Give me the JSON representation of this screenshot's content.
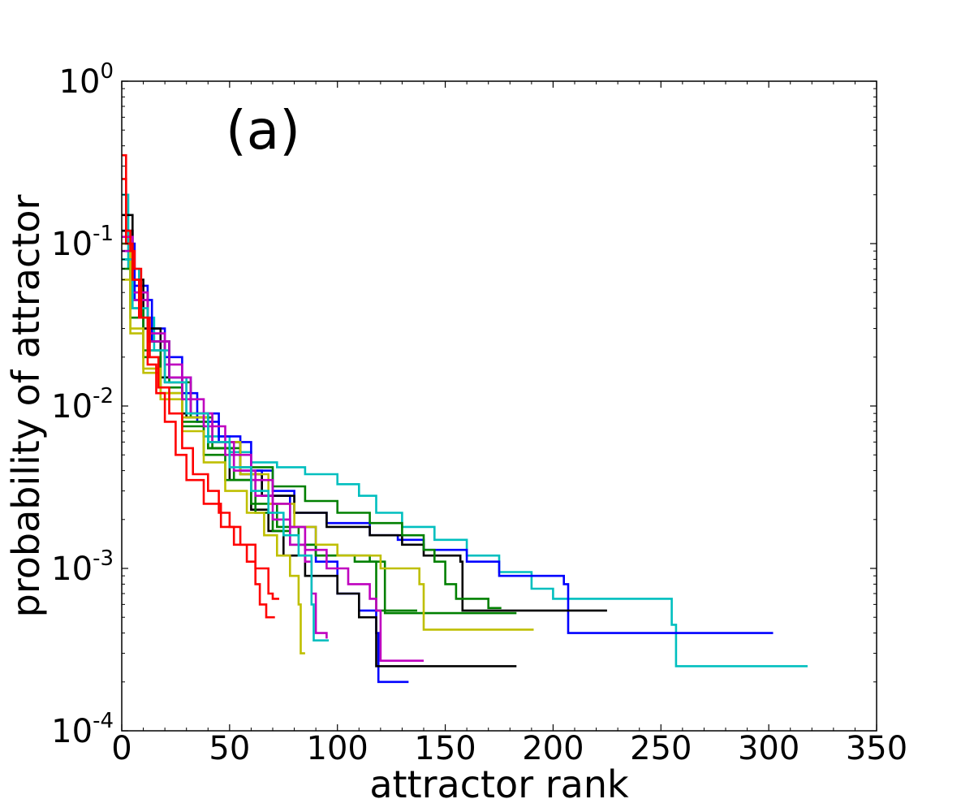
{
  "chart_data": {
    "type": "line",
    "title": "",
    "panel_label": "(a)",
    "xlabel": "attractor rank",
    "ylabel": "probability of attractor",
    "xlim": [
      0,
      350
    ],
    "ylim": [
      0.0001,
      1
    ],
    "yscale": "log",
    "grid": false,
    "legend": "none",
    "x_ticks": [
      0,
      50,
      100,
      150,
      200,
      250,
      300,
      350
    ],
    "x_tick_labels": [
      "0",
      "50",
      "100",
      "150",
      "200",
      "250",
      "300",
      "350"
    ],
    "y_ticks": [
      {
        "value": 1,
        "base": "10",
        "exp": "0"
      },
      {
        "value": 0.1,
        "base": "10",
        "exp": "-1"
      },
      {
        "value": 0.01,
        "base": "10",
        "exp": "-2"
      },
      {
        "value": 0.001,
        "base": "10",
        "exp": "-3"
      },
      {
        "value": 0.0001,
        "base": "10",
        "exp": "-4"
      }
    ],
    "series": [
      {
        "name": "cyan",
        "color": "#00bfbf",
        "points": [
          [
            0,
            0.2
          ],
          [
            3,
            0.07
          ],
          [
            8,
            0.035
          ],
          [
            15,
            0.022
          ],
          [
            22,
            0.015
          ],
          [
            30,
            0.0085
          ],
          [
            38,
            0.0065
          ],
          [
            50,
            0.0052
          ],
          [
            60,
            0.0045
          ],
          [
            72,
            0.0042
          ],
          [
            85,
            0.0038
          ],
          [
            100,
            0.0033
          ],
          [
            110,
            0.0028
          ],
          [
            118,
            0.0022
          ],
          [
            130,
            0.0018
          ],
          [
            145,
            0.0015
          ],
          [
            160,
            0.0012
          ],
          [
            175,
            0.00095
          ],
          [
            190,
            0.00075
          ],
          [
            200,
            0.00065
          ],
          [
            255,
            0.00045
          ],
          [
            257,
            0.00025
          ],
          [
            318,
            0.00025
          ]
        ]
      },
      {
        "name": "blue-1",
        "color": "#0000ff",
        "points": [
          [
            0,
            0.12
          ],
          [
            5,
            0.055
          ],
          [
            12,
            0.03
          ],
          [
            20,
            0.02
          ],
          [
            28,
            0.012
          ],
          [
            35,
            0.008
          ],
          [
            45,
            0.006
          ],
          [
            60,
            0.004
          ],
          [
            70,
            0.003
          ],
          [
            80,
            0.0022
          ],
          [
            95,
            0.0019
          ],
          [
            115,
            0.0016
          ],
          [
            128,
            0.0015
          ],
          [
            140,
            0.0013
          ],
          [
            160,
            0.0011
          ],
          [
            175,
            0.0009
          ],
          [
            205,
            0.0008
          ],
          [
            207,
            0.0004
          ],
          [
            302,
            0.0004
          ]
        ]
      },
      {
        "name": "blue-2",
        "color": "#0000ff",
        "points": [
          [
            0,
            0.1
          ],
          [
            6,
            0.045
          ],
          [
            14,
            0.025
          ],
          [
            22,
            0.015
          ],
          [
            32,
            0.009
          ],
          [
            45,
            0.0065
          ],
          [
            55,
            0.004
          ],
          [
            65,
            0.0028
          ],
          [
            78,
            0.0018
          ],
          [
            90,
            0.0011
          ],
          [
            100,
            0.0007
          ],
          [
            110,
            0.00055
          ],
          [
            118,
            0.0004
          ],
          [
            119,
            0.0002
          ],
          [
            133,
            0.0002
          ]
        ]
      },
      {
        "name": "black-1",
        "color": "#000000",
        "points": [
          [
            0,
            0.15
          ],
          [
            5,
            0.06
          ],
          [
            10,
            0.03
          ],
          [
            18,
            0.015
          ],
          [
            28,
            0.009
          ],
          [
            40,
            0.006
          ],
          [
            55,
            0.0038
          ],
          [
            65,
            0.0028
          ],
          [
            80,
            0.0022
          ],
          [
            95,
            0.0018
          ],
          [
            115,
            0.0016
          ],
          [
            130,
            0.0014
          ],
          [
            140,
            0.0012
          ],
          [
            157,
            0.0011
          ],
          [
            158,
            0.00055
          ],
          [
            225,
            0.00055
          ]
        ]
      },
      {
        "name": "black-2",
        "color": "#000000",
        "points": [
          [
            0,
            0.12
          ],
          [
            5,
            0.05
          ],
          [
            12,
            0.025
          ],
          [
            20,
            0.014
          ],
          [
            30,
            0.0085
          ],
          [
            40,
            0.0055
          ],
          [
            50,
            0.0035
          ],
          [
            60,
            0.0023
          ],
          [
            68,
            0.0017
          ],
          [
            75,
            0.0012
          ],
          [
            85,
            0.0009
          ],
          [
            100,
            0.0007
          ],
          [
            110,
            0.0005
          ],
          [
            117,
            0.0005
          ],
          [
            118,
            0.00025
          ],
          [
            183,
            0.00025
          ]
        ]
      },
      {
        "name": "green-1",
        "color": "#008000",
        "points": [
          [
            0,
            0.08
          ],
          [
            4,
            0.04
          ],
          [
            10,
            0.022
          ],
          [
            18,
            0.013
          ],
          [
            28,
            0.008
          ],
          [
            40,
            0.0055
          ],
          [
            55,
            0.0042
          ],
          [
            70,
            0.0032
          ],
          [
            85,
            0.0026
          ],
          [
            100,
            0.0022
          ],
          [
            115,
            0.0019
          ],
          [
            130,
            0.0016
          ],
          [
            140,
            0.0013
          ],
          [
            145,
            0.0011
          ],
          [
            150,
            0.0008
          ],
          [
            155,
            0.00065
          ],
          [
            170,
            0.00057
          ],
          [
            176,
            0.00057
          ]
        ]
      },
      {
        "name": "green-2",
        "color": "#008000",
        "points": [
          [
            0,
            0.07
          ],
          [
            4,
            0.035
          ],
          [
            10,
            0.02
          ],
          [
            18,
            0.012
          ],
          [
            28,
            0.0075
          ],
          [
            38,
            0.005
          ],
          [
            48,
            0.0035
          ],
          [
            60,
            0.0025
          ],
          [
            72,
            0.0018
          ],
          [
            82,
            0.0014
          ],
          [
            90,
            0.0012
          ],
          [
            115,
            0.0011
          ],
          [
            118,
            0.00055
          ],
          [
            137,
            0.00055
          ]
        ]
      },
      {
        "name": "green-3",
        "color": "#008000",
        "points": [
          [
            0,
            0.09
          ],
          [
            5,
            0.045
          ],
          [
            12,
            0.025
          ],
          [
            22,
            0.014
          ],
          [
            32,
            0.0085
          ],
          [
            42,
            0.0055
          ],
          [
            52,
            0.0035
          ],
          [
            62,
            0.0022
          ],
          [
            70,
            0.0017
          ],
          [
            78,
            0.0014
          ],
          [
            90,
            0.0012
          ],
          [
            108,
            0.0011
          ],
          [
            120,
            0.0011
          ],
          [
            122,
            0.00053
          ],
          [
            183,
            0.00053
          ]
        ]
      },
      {
        "name": "yellow",
        "color": "#bfbf00",
        "points": [
          [
            0,
            0.1
          ],
          [
            4,
            0.03
          ],
          [
            10,
            0.017
          ],
          [
            18,
            0.012
          ],
          [
            28,
            0.0085
          ],
          [
            40,
            0.006
          ],
          [
            55,
            0.0038
          ],
          [
            68,
            0.0025
          ],
          [
            80,
            0.0018
          ],
          [
            90,
            0.0014
          ],
          [
            100,
            0.0012
          ],
          [
            120,
            0.001
          ],
          [
            138,
            0.0008
          ],
          [
            140,
            0.00042
          ],
          [
            191,
            0.00042
          ]
        ]
      },
      {
        "name": "yellow-2",
        "color": "#bfbf00",
        "points": [
          [
            0,
            0.06
          ],
          [
            4,
            0.028
          ],
          [
            10,
            0.016
          ],
          [
            18,
            0.011
          ],
          [
            28,
            0.007
          ],
          [
            38,
            0.0045
          ],
          [
            48,
            0.003
          ],
          [
            58,
            0.0022
          ],
          [
            66,
            0.0016
          ],
          [
            72,
            0.0012
          ],
          [
            78,
            0.0009
          ],
          [
            82,
            0.0006
          ],
          [
            83,
            0.0003
          ],
          [
            85,
            0.0003
          ]
        ]
      },
      {
        "name": "magenta",
        "color": "#bf00bf",
        "points": [
          [
            0,
            0.11
          ],
          [
            5,
            0.05
          ],
          [
            12,
            0.028
          ],
          [
            20,
            0.018
          ],
          [
            28,
            0.011
          ],
          [
            38,
            0.0075
          ],
          [
            48,
            0.005
          ],
          [
            60,
            0.0035
          ],
          [
            70,
            0.0025
          ],
          [
            78,
            0.0018
          ],
          [
            85,
            0.0013
          ],
          [
            95,
            0.001
          ],
          [
            105,
            0.0008
          ],
          [
            115,
            0.00065
          ],
          [
            118,
            0.00055
          ],
          [
            120,
            0.00027
          ],
          [
            140,
            0.00027
          ]
        ]
      },
      {
        "name": "magenta-2",
        "color": "#bf00bf",
        "points": [
          [
            0,
            0.09
          ],
          [
            5,
            0.045
          ],
          [
            12,
            0.025
          ],
          [
            22,
            0.015
          ],
          [
            32,
            0.009
          ],
          [
            42,
            0.006
          ],
          [
            52,
            0.004
          ],
          [
            62,
            0.0028
          ],
          [
            70,
            0.002
          ],
          [
            78,
            0.0014
          ],
          [
            85,
            0.0011
          ],
          [
            88,
            0.0007
          ],
          [
            90,
            0.0004
          ],
          [
            95,
            0.00037
          ]
        ]
      },
      {
        "name": "cyan-2",
        "color": "#00bfbf",
        "points": [
          [
            0,
            0.08
          ],
          [
            5,
            0.04
          ],
          [
            12,
            0.022
          ],
          [
            20,
            0.014
          ],
          [
            30,
            0.009
          ],
          [
            40,
            0.006
          ],
          [
            50,
            0.0042
          ],
          [
            60,
            0.003
          ],
          [
            68,
            0.0022
          ],
          [
            75,
            0.0016
          ],
          [
            82,
            0.0012
          ],
          [
            88,
            0.0006
          ],
          [
            89,
            0.00036
          ],
          [
            96,
            0.00036
          ]
        ]
      },
      {
        "name": "red-1",
        "color": "#ff0000",
        "points": [
          [
            0,
            0.35
          ],
          [
            2,
            0.12
          ],
          [
            4,
            0.09
          ],
          [
            6,
            0.07
          ],
          [
            9,
            0.035
          ],
          [
            13,
            0.02
          ],
          [
            17,
            0.013
          ],
          [
            22,
            0.009
          ],
          [
            28,
            0.0055
          ],
          [
            33,
            0.0038
          ],
          [
            40,
            0.003
          ],
          [
            45,
            0.0022
          ],
          [
            50,
            0.0018
          ],
          [
            55,
            0.0014
          ],
          [
            62,
            0.001
          ],
          [
            68,
            0.0007
          ],
          [
            70,
            0.00065
          ],
          [
            73,
            0.00065
          ]
        ]
      },
      {
        "name": "red-2",
        "color": "#ff0000",
        "points": [
          [
            0,
            0.25
          ],
          [
            2,
            0.1
          ],
          [
            5,
            0.06
          ],
          [
            8,
            0.035
          ],
          [
            12,
            0.018
          ],
          [
            16,
            0.012
          ],
          [
            20,
            0.008
          ],
          [
            25,
            0.005
          ],
          [
            30,
            0.0035
          ],
          [
            38,
            0.0025
          ],
          [
            46,
            0.0018
          ],
          [
            52,
            0.0014
          ],
          [
            58,
            0.0011
          ],
          [
            62,
            0.0008
          ],
          [
            64,
            0.0006
          ],
          [
            67,
            0.0005
          ],
          [
            71,
            0.0005
          ]
        ]
      }
    ]
  }
}
